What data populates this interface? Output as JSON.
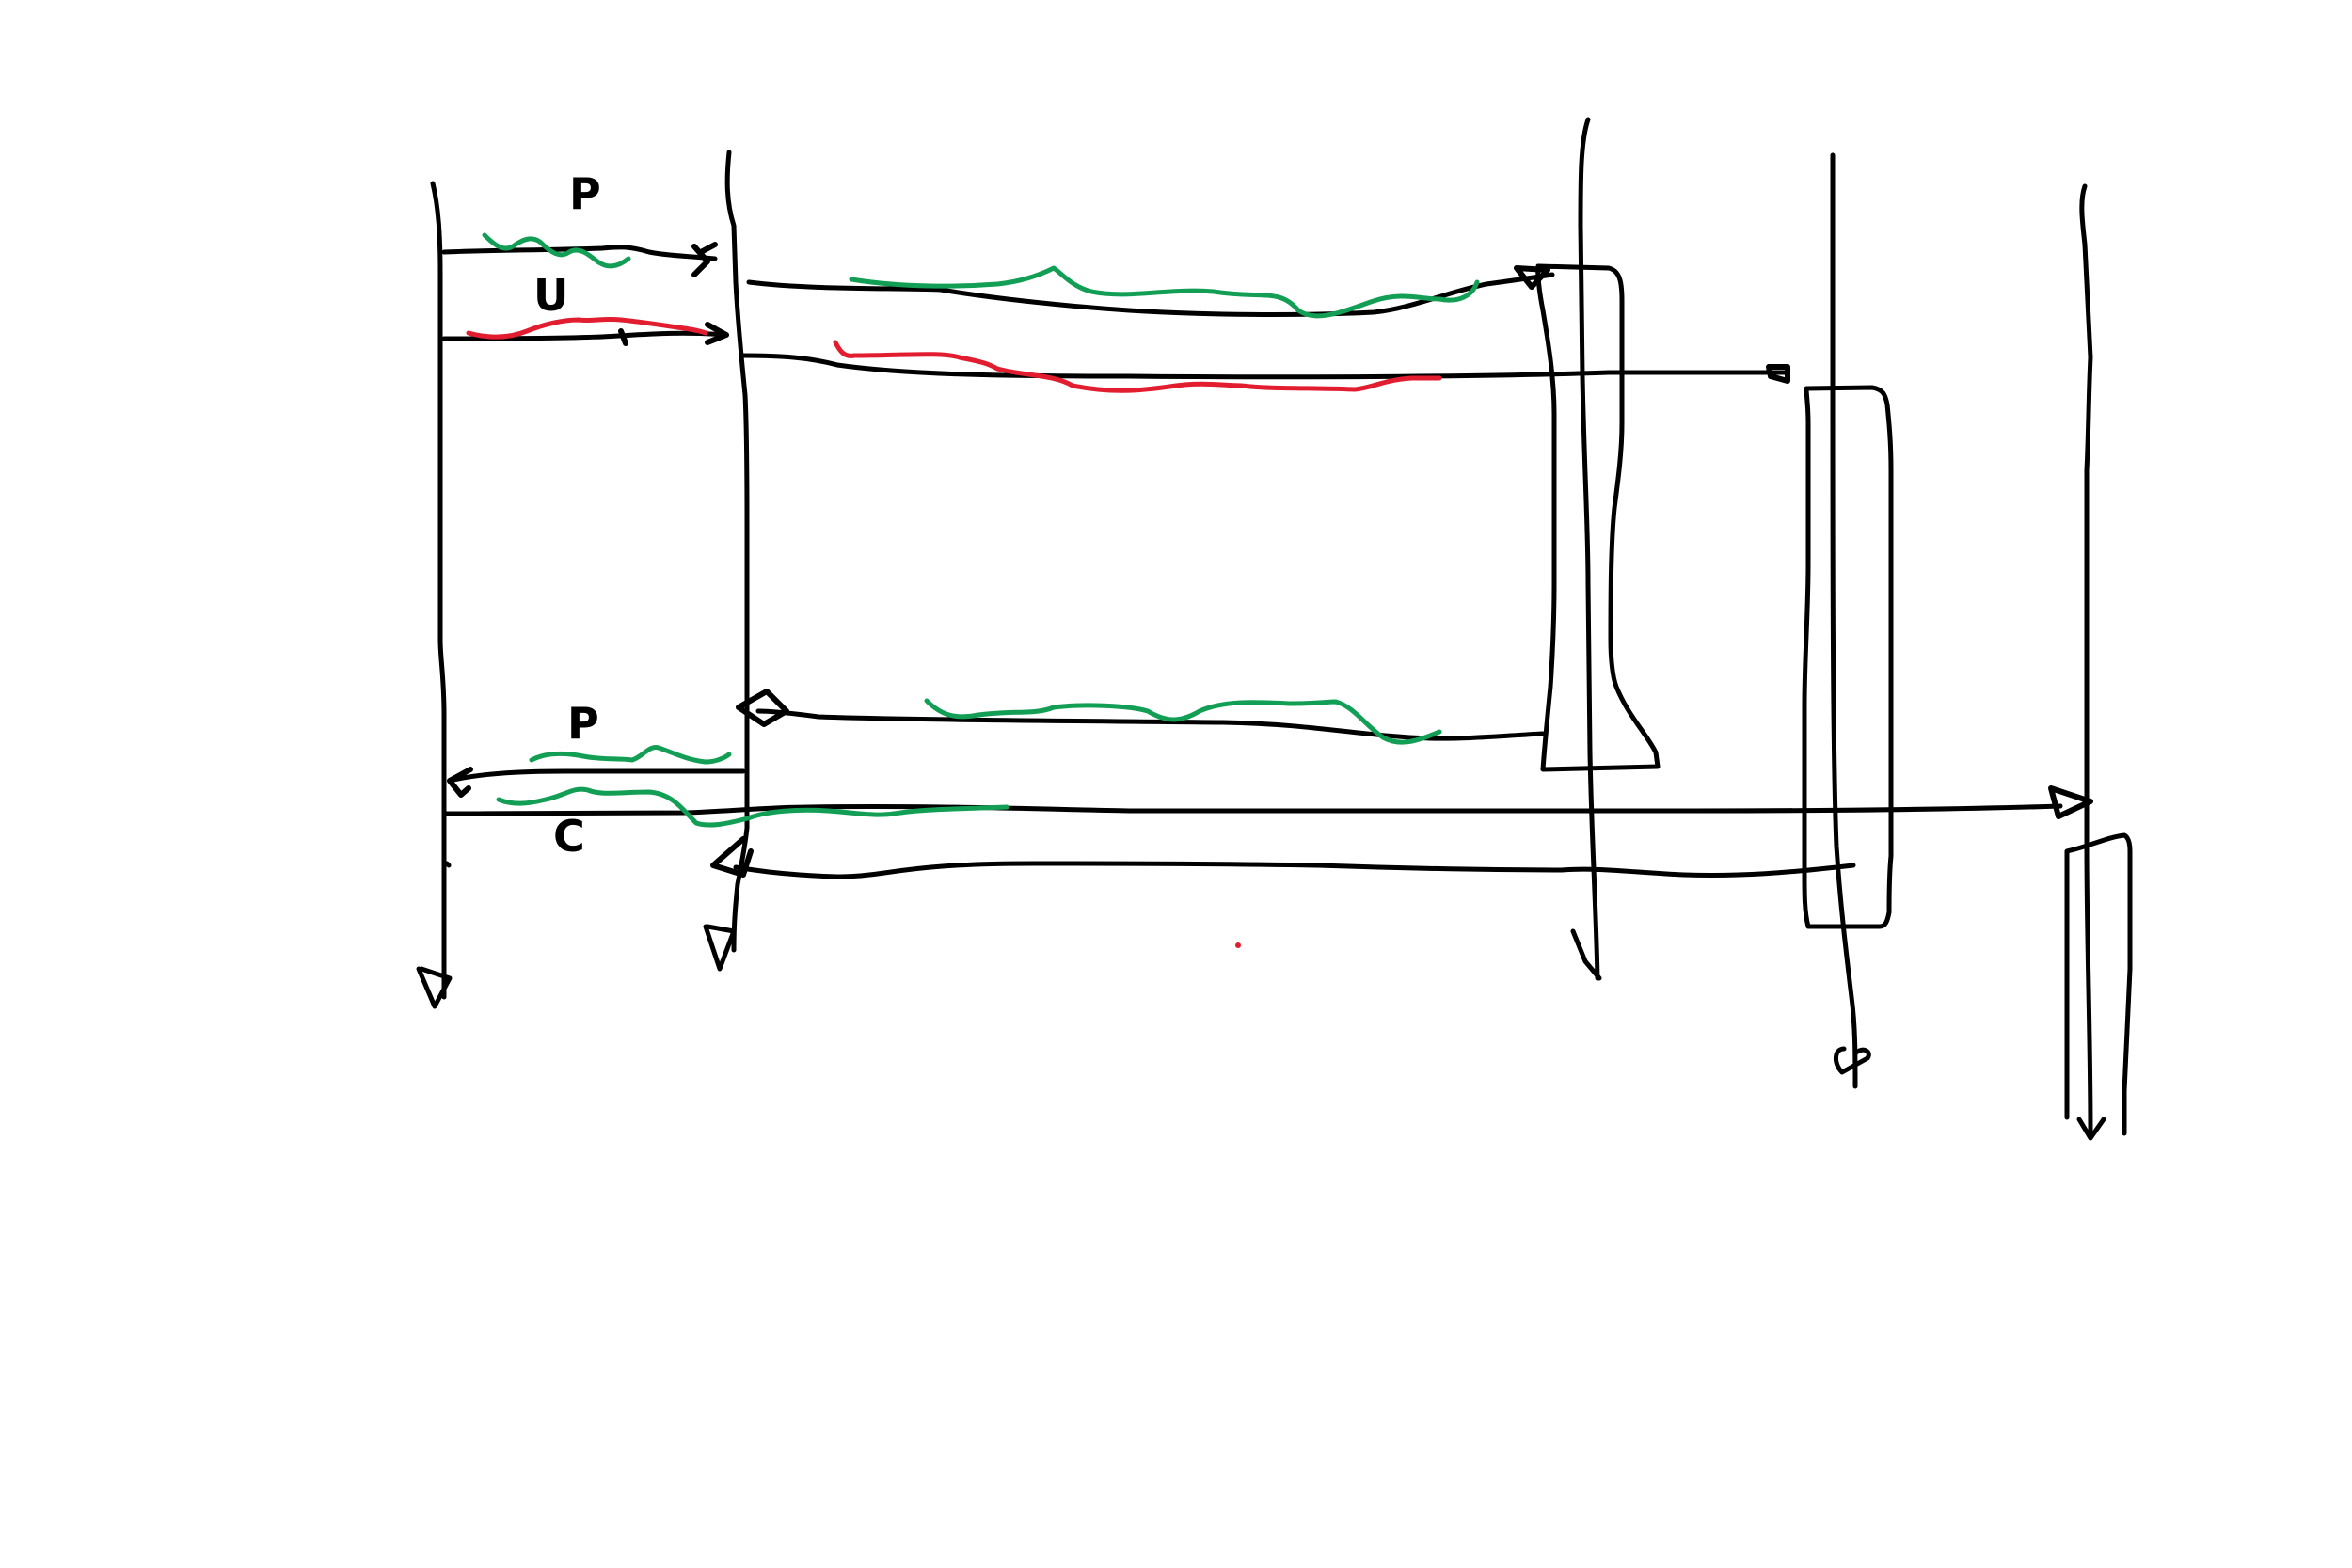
{
  "colors": {
    "background": "#ffffff",
    "ink": "#000000",
    "highlight_green": "#129f55",
    "highlight_red": "#e21d30"
  },
  "labels": {
    "top_letter": "P",
    "second_letter": "U",
    "return_letter": "P",
    "bottom_letter": "C"
  }
}
